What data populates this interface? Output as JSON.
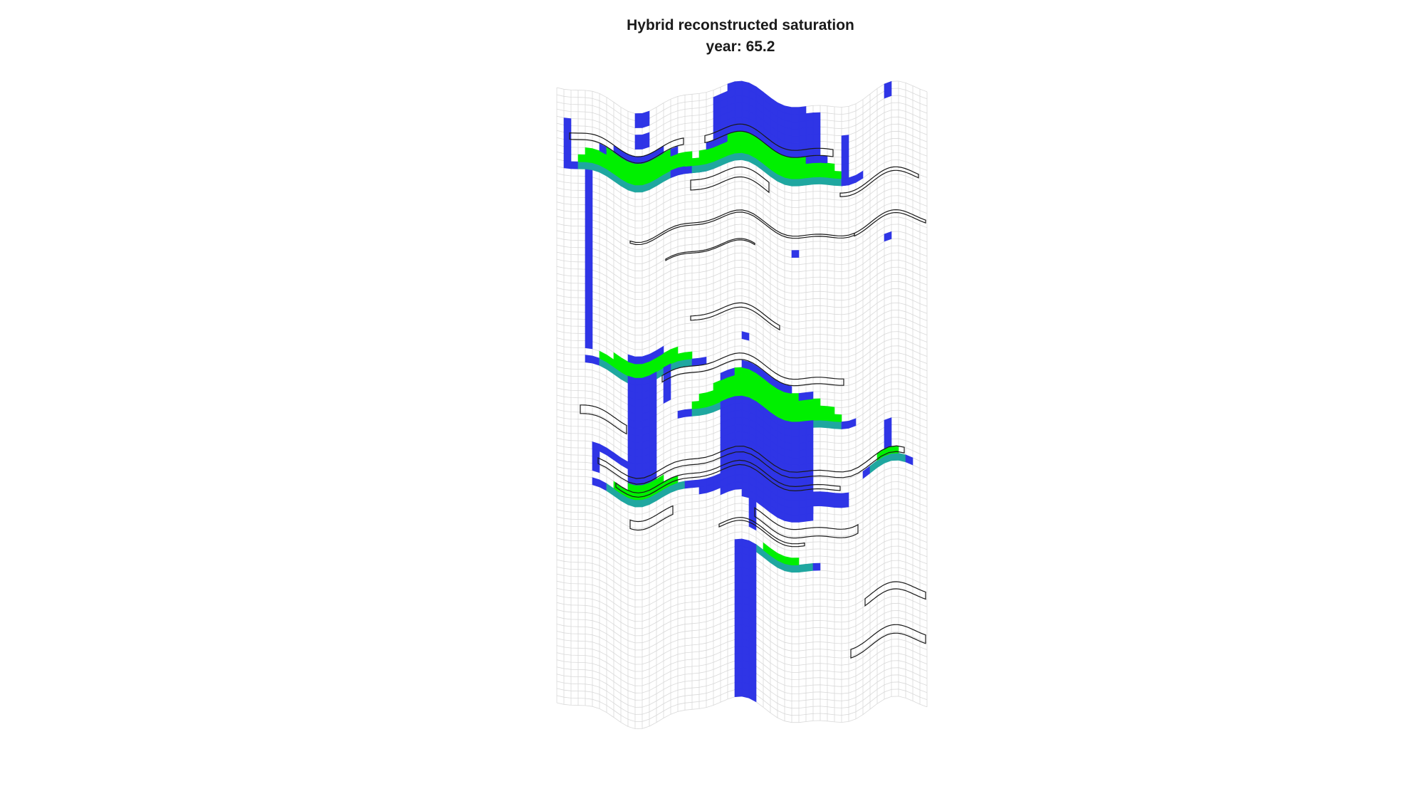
{
  "chart_data": {
    "type": "heatmap",
    "title": "Hybrid reconstructed saturation",
    "subtitle": "year: 65.2",
    "grid": "on",
    "axes_visible": false,
    "colors": {
      "grid": "#d9d9d9",
      "boundary": "#1a1a1a",
      "low_saturation": "#2f35e6",
      "mid_saturation": "#1fa7a0",
      "high_saturation": "#00f000",
      "background": "#ffffff"
    },
    "saturation_levels": [
      0.05,
      0.35,
      0.7,
      1.0
    ]
  }
}
